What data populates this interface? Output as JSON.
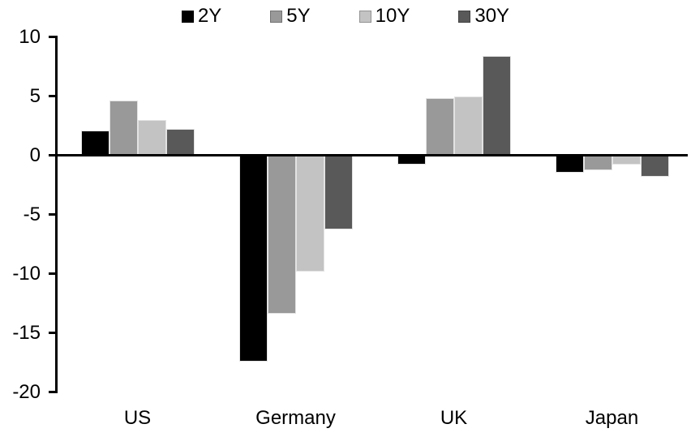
{
  "chart_data": {
    "type": "bar",
    "title": "",
    "categories": [
      "US",
      "Germany",
      "UK",
      "Japan"
    ],
    "series": [
      {
        "name": "2Y",
        "color": "#000000",
        "values": [
          2.1,
          -17.4,
          -0.8,
          -1.5
        ]
      },
      {
        "name": "5Y",
        "color": "#999999",
        "values": [
          4.6,
          -13.4,
          4.8,
          -1.3
        ]
      },
      {
        "name": "10Y",
        "color": "#c3c3c3",
        "values": [
          3.0,
          -9.8,
          5.0,
          -0.8
        ]
      },
      {
        "name": "30Y",
        "color": "#595959",
        "values": [
          2.2,
          -6.3,
          8.4,
          -1.8
        ]
      }
    ],
    "xlabel": "",
    "ylabel": "",
    "ylim": [
      -20,
      10
    ],
    "yticks": [
      10,
      5,
      0,
      -5,
      -10,
      -15,
      -20
    ],
    "legend_position": "top",
    "grid": false,
    "axis_color": "#000000",
    "background": "#ffffff"
  }
}
